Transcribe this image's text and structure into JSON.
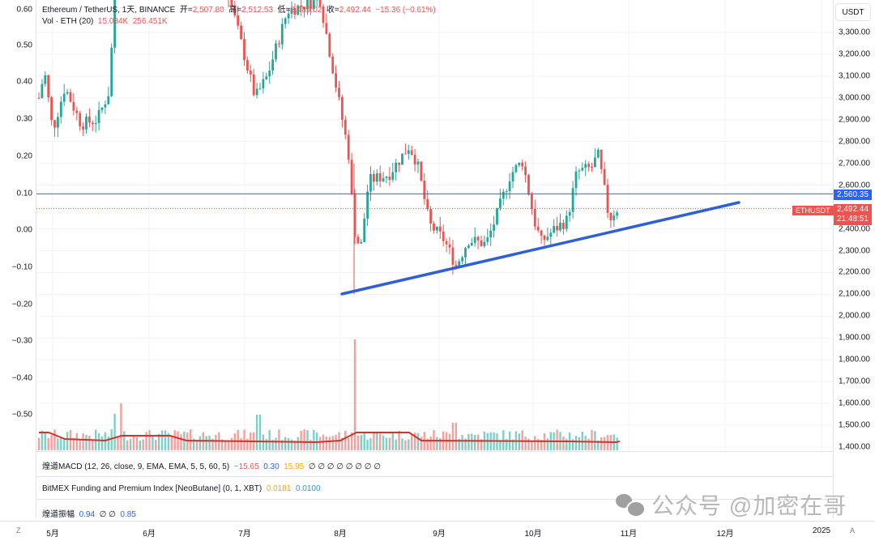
{
  "header": {
    "symbol": "Ethereum / TetherUS, 1天, BINANCE",
    "open_label": "开=",
    "open": "2,507.80",
    "high_label": "高=",
    "high": "2,512.53",
    "low_label": "低=",
    "low": "2,489.02",
    "close_label": "收=",
    "close": "2,492.44",
    "change": "−15.36 (−0.61%)",
    "volume_label": "Vol · ETH (20)",
    "volume_1": "15.034K",
    "volume_2": "256.451K"
  },
  "right_axis": {
    "currency_button": "USDT",
    "ticks": [
      "3,300.00",
      "3,200.00",
      "3,100.00",
      "3,000.00",
      "2,900.00",
      "2,800.00",
      "2,700.00",
      "2,600.00",
      "2,400.00",
      "2,300.00",
      "2,200.00",
      "2,100.00",
      "2,000.00",
      "1,900.00",
      "1,800.00",
      "1,700.00",
      "1,600.00",
      "1,500.00",
      "1,400.00"
    ],
    "horizontal_line_badge": "2,560.35",
    "last_price_badge": "2,492.44",
    "countdown": "21:48:51",
    "symbol_label": "ETHUSDT"
  },
  "left_axis": {
    "ticks": [
      "0.60",
      "0.50",
      "0.40",
      "0.30",
      "0.20",
      "0.10",
      "0.00",
      "−0.10",
      "−0.20",
      "−0.30",
      "−0.40",
      "−0.50"
    ]
  },
  "panes": {
    "macd": {
      "label": "煌道MACD (12, 26, close, 9, EMA, EMA, 5, 5, 60, 5)",
      "v1": "−15.65",
      "v2": "0.30",
      "v3": "15.95",
      "rest": "∅ ∅ ∅ ∅ ∅ ∅ ∅ ∅"
    },
    "bitmex": {
      "label": "BitMEX Funding and Premium Index [NeoButane] (0, 1, XBT)",
      "v1": "0.0181",
      "v2": "0.0100"
    },
    "amp": {
      "label": "煌道振幅",
      "v1": "0.94",
      "rest": "∅ ∅",
      "v2": "0.85"
    }
  },
  "time_axis": {
    "z_toggle": "Z",
    "a_toggle": "A",
    "labels": [
      "5月",
      "6月",
      "7月",
      "8月",
      "9月",
      "10月",
      "11月",
      "12月",
      "2025"
    ]
  },
  "watermark": "公众号 @加密在哥",
  "colors": {
    "up": "#26a69a",
    "down": "#ef5350",
    "trendline": "#2f5fd8",
    "hline": "#2962ff",
    "volume_ma": "#d0342c"
  },
  "chart_data": {
    "type": "candlestick",
    "title": "Ethereum / TetherUS, 1D, BINANCE",
    "xlabel": "",
    "ylabel": "USDT",
    "ylim": [
      1400,
      3300
    ],
    "x_ticks": [
      "5月",
      "6月",
      "7月",
      "8月",
      "9月",
      "10月",
      "11月",
      "12月",
      "2025"
    ],
    "last": {
      "open": 2507.8,
      "high": 2512.53,
      "low": 2489.02,
      "close": 2492.44,
      "change": -15.36,
      "change_pct": -0.61
    },
    "horizontal_line": 2560.35,
    "trendline": {
      "from": {
        "date": "2024-08-05",
        "price": 2110
      },
      "to": {
        "date": "2024-12-01",
        "price": 2570
      }
    },
    "approx_path": [
      {
        "month": "5月 start",
        "price": 3000
      },
      {
        "month": "5月 mid",
        "price": 2900
      },
      {
        "month": "5月 late",
        "price": 3700
      },
      {
        "month": "6月",
        "price": 3600
      },
      {
        "month": "7月 early",
        "price": 2950
      },
      {
        "month": "7月 late",
        "price": 3400
      },
      {
        "month": "8月 5 low",
        "price": 2120
      },
      {
        "month": "8月 late",
        "price": 2800
      },
      {
        "month": "9月 6 low",
        "price": 2150
      },
      {
        "month": "10月 early",
        "price": 2710
      },
      {
        "month": "10月 mid",
        "price": 2320
      },
      {
        "month": "10月 late",
        "price": 2760
      },
      {
        "month": "11月 start",
        "price": 2492
      }
    ],
    "volume": {
      "label": "Vol · ETH (20)",
      "last": "15.034K",
      "ma": "256.451K",
      "spike_date": "2024-08-05"
    }
  }
}
